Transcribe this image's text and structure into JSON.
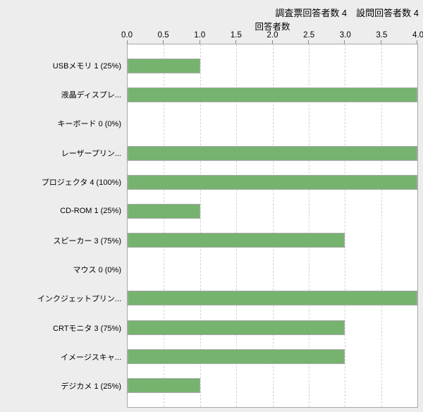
{
  "header": {
    "title": "調査票回答者数 4　設問回答者数 4"
  },
  "chart_data": {
    "type": "bar",
    "orientation": "horizontal",
    "title": "調査票回答者数 4　設問回答者数 4",
    "xlabel": "回答者数",
    "xlim": [
      0,
      4
    ],
    "tick_labels": [
      "0.0",
      "0.5",
      "1.0",
      "1.5",
      "2.0",
      "2.5",
      "3.0",
      "3.5",
      "4.0"
    ],
    "grid": "vertical-dashed",
    "legend": "none",
    "categories": [
      "USBメモリ 1 (25%)",
      "液晶ディスプレ...",
      "キーボード 0 (0%)",
      "レーザープリン...",
      "プロジェクタ 4 (100%)",
      "CD-ROM 1 (25%)",
      "スピーカー 3 (75%)",
      "マウス 0 (0%)",
      "インクジェットプリン...",
      "CRTモニタ 3 (75%)",
      "イメージスキャ...",
      "デジカメ 1 (25%)"
    ],
    "values": [
      1,
      4,
      0,
      4,
      4,
      1,
      3,
      0,
      4,
      3,
      3,
      1
    ]
  },
  "colors": {
    "background": "#ededed",
    "plot_background": "#ffffff",
    "plot_border": "#a8a8a8",
    "gridline": "#d2d2d2",
    "bar_fill": "#75b36e",
    "bar_border": "#a8a8a8",
    "text": "#000000"
  }
}
